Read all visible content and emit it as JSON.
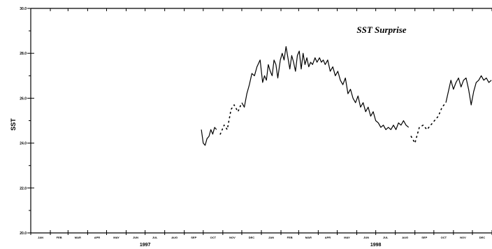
{
  "chart_data": {
    "type": "line",
    "title": "SST Surprise",
    "xlabel": "",
    "ylabel": "SST",
    "ylim": [
      20.0,
      30.0
    ],
    "y_ticks": [
      "20.0",
      "22.0",
      "24.0",
      "26.0",
      "28.0",
      "30.0"
    ],
    "x_range": [
      "1997-01",
      "1999-01"
    ],
    "month_labels": [
      "JAN",
      "FEB",
      "MAR",
      "APR",
      "MAY",
      "JUN",
      "JUL",
      "AUG",
      "SEP",
      "OCT",
      "NOV",
      "DEC",
      "JAN",
      "FEB",
      "MAR",
      "APR",
      "MAY",
      "JUN",
      "JUL",
      "AUG",
      "SEP",
      "OCT",
      "NOV",
      "DEC"
    ],
    "year_labels": [
      "1997",
      "1998"
    ],
    "grid": false,
    "series": [
      {
        "style": "solid",
        "points": [
          [
            "1997-09-28",
            24.6
          ],
          [
            "1997-10-01",
            24.0
          ],
          [
            "1997-10-04",
            23.9
          ],
          [
            "1997-10-07",
            24.2
          ],
          [
            "1997-10-10",
            24.3
          ],
          [
            "1997-10-13",
            24.6
          ],
          [
            "1997-10-16",
            24.4
          ],
          [
            "1997-10-19",
            24.7
          ],
          [
            "1997-10-22",
            24.6
          ]
        ]
      },
      {
        "style": "dotted",
        "points": [
          [
            "1997-10-28",
            24.4
          ],
          [
            "1997-11-03",
            24.8
          ],
          [
            "1997-11-08",
            24.6
          ],
          [
            "1997-11-14",
            25.5
          ],
          [
            "1997-11-19",
            25.7
          ],
          [
            "1997-11-25",
            25.4
          ],
          [
            "1997-12-01",
            25.8
          ]
        ]
      },
      {
        "style": "solid",
        "points": [
          [
            "1997-12-01",
            25.8
          ],
          [
            "1997-12-05",
            25.6
          ],
          [
            "1997-12-09",
            26.2
          ],
          [
            "1997-12-13",
            26.6
          ],
          [
            "1997-12-17",
            27.1
          ],
          [
            "1997-12-21",
            27.0
          ],
          [
            "1997-12-25",
            27.4
          ],
          [
            "1997-12-30",
            27.7
          ],
          [
            "1998-01-03",
            26.7
          ],
          [
            "1998-01-06",
            27.0
          ],
          [
            "1998-01-09",
            26.8
          ],
          [
            "1998-01-12",
            27.5
          ],
          [
            "1998-01-15",
            27.2
          ],
          [
            "1998-01-18",
            27.0
          ],
          [
            "1998-01-21",
            27.7
          ],
          [
            "1998-01-24",
            27.5
          ],
          [
            "1998-01-27",
            26.9
          ],
          [
            "1998-01-31",
            27.7
          ],
          [
            "1998-02-03",
            28.0
          ],
          [
            "1998-02-06",
            27.7
          ],
          [
            "1998-02-09",
            28.3
          ],
          [
            "1998-02-12",
            27.8
          ],
          [
            "1998-02-15",
            27.3
          ],
          [
            "1998-02-18",
            27.9
          ],
          [
            "1998-02-21",
            27.6
          ],
          [
            "1998-02-24",
            27.2
          ],
          [
            "1998-02-27",
            27.9
          ],
          [
            "1998-03-02",
            28.1
          ],
          [
            "1998-03-05",
            27.3
          ],
          [
            "1998-03-08",
            28.0
          ],
          [
            "1998-03-11",
            27.5
          ],
          [
            "1998-03-14",
            27.8
          ],
          [
            "1998-03-17",
            27.4
          ],
          [
            "1998-03-20",
            27.6
          ],
          [
            "1998-03-23",
            27.5
          ],
          [
            "1998-03-27",
            27.8
          ],
          [
            "1998-03-30",
            27.6
          ],
          [
            "1998-04-03",
            27.8
          ],
          [
            "1998-04-06",
            27.6
          ],
          [
            "1998-04-09",
            27.7
          ],
          [
            "1998-04-12",
            27.5
          ],
          [
            "1998-04-16",
            27.7
          ],
          [
            "1998-04-20",
            27.2
          ],
          [
            "1998-04-24",
            27.4
          ],
          [
            "1998-04-28",
            27.0
          ],
          [
            "1998-05-02",
            27.2
          ],
          [
            "1998-05-06",
            26.8
          ],
          [
            "1998-05-10",
            26.6
          ],
          [
            "1998-05-14",
            26.9
          ],
          [
            "1998-05-18",
            26.2
          ],
          [
            "1998-05-22",
            26.4
          ],
          [
            "1998-05-26",
            26.0
          ],
          [
            "1998-05-30",
            25.8
          ],
          [
            "1998-06-03",
            26.1
          ],
          [
            "1998-06-07",
            25.6
          ],
          [
            "1998-06-11",
            25.8
          ],
          [
            "1998-06-15",
            25.4
          ],
          [
            "1998-06-19",
            25.6
          ],
          [
            "1998-06-23",
            25.2
          ],
          [
            "1998-06-27",
            25.4
          ],
          [
            "1998-07-01",
            25.0
          ],
          [
            "1998-07-05",
            24.9
          ],
          [
            "1998-07-09",
            24.7
          ],
          [
            "1998-07-13",
            24.8
          ],
          [
            "1998-07-17",
            24.6
          ],
          [
            "1998-07-21",
            24.7
          ],
          [
            "1998-07-25",
            24.6
          ],
          [
            "1998-07-29",
            24.8
          ],
          [
            "1998-08-02",
            24.6
          ],
          [
            "1998-08-06",
            24.9
          ],
          [
            "1998-08-10",
            24.8
          ],
          [
            "1998-08-14",
            25.0
          ],
          [
            "1998-08-18",
            24.8
          ],
          [
            "1998-08-22",
            24.7
          ]
        ]
      },
      {
        "style": "dotted",
        "points": [
          [
            "1998-08-26",
            24.3
          ],
          [
            "1998-09-01",
            24.0
          ],
          [
            "1998-09-08",
            24.7
          ],
          [
            "1998-09-14",
            24.8
          ],
          [
            "1998-09-20",
            24.6
          ],
          [
            "1998-09-26",
            24.8
          ],
          [
            "1998-10-02",
            25.0
          ],
          [
            "1998-10-08",
            25.2
          ],
          [
            "1998-10-14",
            25.6
          ],
          [
            "1998-10-20",
            25.8
          ]
        ]
      },
      {
        "style": "solid",
        "points": [
          [
            "1998-10-20",
            25.8
          ],
          [
            "1998-10-24",
            26.3
          ],
          [
            "1998-10-28",
            26.8
          ],
          [
            "1998-11-01",
            26.4
          ],
          [
            "1998-11-05",
            26.7
          ],
          [
            "1998-11-09",
            26.9
          ],
          [
            "1998-11-13",
            26.5
          ],
          [
            "1998-11-17",
            26.8
          ],
          [
            "1998-11-21",
            26.9
          ],
          [
            "1998-11-25",
            26.4
          ],
          [
            "1998-11-29",
            25.7
          ],
          [
            "1998-12-03",
            26.3
          ],
          [
            "1998-12-07",
            26.7
          ],
          [
            "1998-12-11",
            26.8
          ],
          [
            "1998-12-15",
            27.0
          ],
          [
            "1998-12-19",
            26.8
          ],
          [
            "1998-12-23",
            26.9
          ],
          [
            "1998-12-27",
            26.7
          ],
          [
            "1998-12-31",
            26.8
          ]
        ]
      }
    ]
  }
}
